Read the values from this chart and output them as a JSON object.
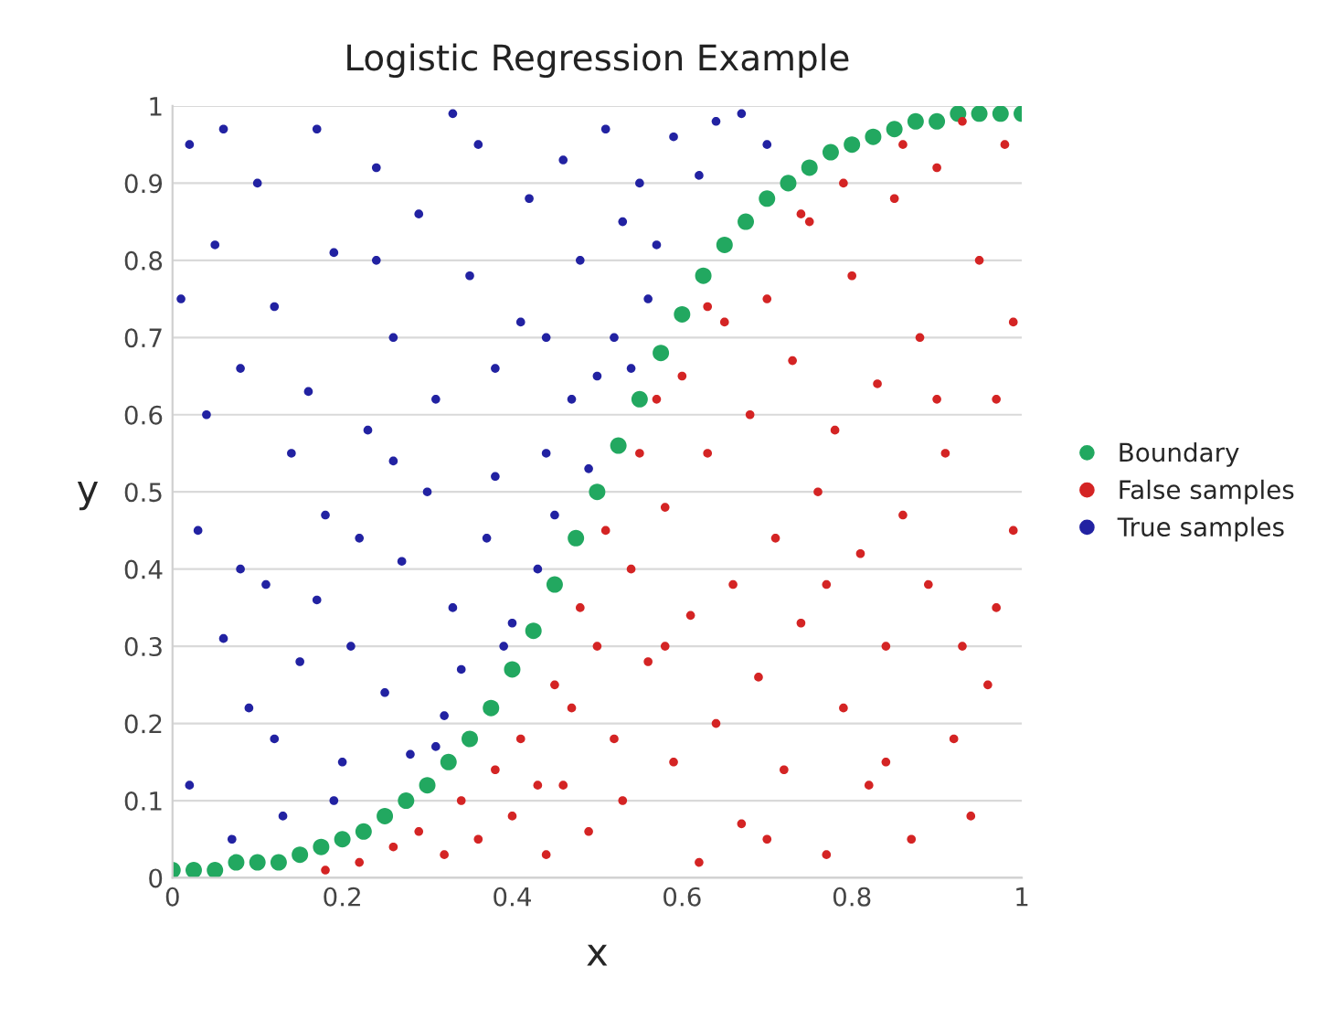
{
  "chart_data": {
    "type": "scatter",
    "title": "Logistic Regression Example",
    "xlabel": "x",
    "ylabel": "y",
    "xlim": [
      0,
      1
    ],
    "ylim": [
      0,
      1
    ],
    "xticks": [
      0,
      0.2,
      0.4,
      0.6,
      0.8,
      1
    ],
    "yticks": [
      0,
      0.1,
      0.2,
      0.3,
      0.4,
      0.5,
      0.6,
      0.7,
      0.8,
      0.9,
      1
    ],
    "grid": "y",
    "legend": "right",
    "marker": "circle",
    "series": [
      {
        "name": "Boundary",
        "color": "#22a860",
        "x": [
          0,
          0.025,
          0.05,
          0.075,
          0.1,
          0.125,
          0.15,
          0.175,
          0.2,
          0.225,
          0.25,
          0.275,
          0.3,
          0.325,
          0.35,
          0.375,
          0.4,
          0.425,
          0.45,
          0.475,
          0.5,
          0.525,
          0.55,
          0.575,
          0.6,
          0.625,
          0.65,
          0.675,
          0.7,
          0.725,
          0.75,
          0.775,
          0.8,
          0.825,
          0.85,
          0.875,
          0.9,
          0.925,
          0.95,
          0.975,
          1
        ],
        "values": [
          0.01,
          0.01,
          0.01,
          0.02,
          0.02,
          0.02,
          0.03,
          0.04,
          0.05,
          0.06,
          0.08,
          0.1,
          0.12,
          0.15,
          0.18,
          0.22,
          0.27,
          0.32,
          0.38,
          0.44,
          0.5,
          0.56,
          0.62,
          0.68,
          0.73,
          0.78,
          0.82,
          0.85,
          0.88,
          0.9,
          0.92,
          0.94,
          0.95,
          0.96,
          0.97,
          0.98,
          0.98,
          0.99,
          0.99,
          0.99,
          0.99
        ]
      },
      {
        "name": "False samples",
        "color": "#d42424",
        "x": [
          0.98,
          0.95,
          0.97,
          0.99,
          0.96,
          0.94,
          0.9,
          0.88,
          0.91,
          0.89,
          0.92,
          0.85,
          0.83,
          0.86,
          0.84,
          0.87,
          0.8,
          0.78,
          0.81,
          0.79,
          0.82,
          0.75,
          0.73,
          0.76,
          0.74,
          0.77,
          0.7,
          0.68,
          0.71,
          0.69,
          0.72,
          0.65,
          0.63,
          0.66,
          0.64,
          0.67,
          0.6,
          0.58,
          0.61,
          0.59,
          0.62,
          0.55,
          0.54,
          0.56,
          0.53,
          0.51,
          0.5,
          0.52,
          0.48,
          0.47,
          0.49,
          0.45,
          0.43,
          0.44,
          0.41,
          0.4,
          0.38,
          0.36,
          0.34,
          0.32,
          0.29,
          0.26,
          0.22,
          0.18,
          0.93,
          0.97,
          0.99,
          0.86,
          0.79,
          0.74,
          0.57,
          0.46,
          0.63,
          0.9,
          0.84,
          0.7,
          0.58,
          0.93,
          0.77
        ],
        "values": [
          0.95,
          0.8,
          0.62,
          0.45,
          0.25,
          0.08,
          0.92,
          0.7,
          0.55,
          0.38,
          0.18,
          0.88,
          0.64,
          0.47,
          0.3,
          0.05,
          0.78,
          0.58,
          0.42,
          0.22,
          0.12,
          0.85,
          0.67,
          0.5,
          0.33,
          0.03,
          0.75,
          0.6,
          0.44,
          0.26,
          0.14,
          0.72,
          0.55,
          0.38,
          0.2,
          0.07,
          0.65,
          0.48,
          0.34,
          0.15,
          0.02,
          0.55,
          0.4,
          0.28,
          0.1,
          0.45,
          0.3,
          0.18,
          0.35,
          0.22,
          0.06,
          0.25,
          0.12,
          0.03,
          0.18,
          0.08,
          0.14,
          0.05,
          0.1,
          0.03,
          0.06,
          0.04,
          0.02,
          0.01,
          0.98,
          0.35,
          0.72,
          0.95,
          0.9,
          0.86,
          0.62,
          0.12,
          0.74,
          0.62,
          0.15,
          0.05,
          0.3,
          0.3,
          0.38
        ]
      },
      {
        "name": "True samples",
        "color": "#2222a2",
        "x": [
          0.02,
          0.05,
          0.08,
          0.03,
          0.06,
          0.02,
          0.1,
          0.12,
          0.14,
          0.11,
          0.09,
          0.13,
          0.17,
          0.19,
          0.16,
          0.18,
          0.21,
          0.2,
          0.24,
          0.26,
          0.23,
          0.27,
          0.25,
          0.29,
          0.31,
          0.3,
          0.33,
          0.32,
          0.36,
          0.35,
          0.38,
          0.37,
          0.39,
          0.42,
          0.41,
          0.44,
          0.43,
          0.46,
          0.48,
          0.47,
          0.49,
          0.51,
          0.53,
          0.52,
          0.55,
          0.57,
          0.59,
          0.62,
          0.64,
          0.04,
          0.07,
          0.15,
          0.22,
          0.28,
          0.34,
          0.4,
          0.45,
          0.06,
          0.01,
          0.12,
          0.19,
          0.26,
          0.33,
          0.5,
          0.56,
          0.67,
          0.7,
          0.08,
          0.17,
          0.24,
          0.31,
          0.38,
          0.44,
          0.54
        ],
        "values": [
          0.95,
          0.82,
          0.66,
          0.45,
          0.31,
          0.12,
          0.9,
          0.74,
          0.55,
          0.38,
          0.22,
          0.08,
          0.97,
          0.81,
          0.63,
          0.47,
          0.3,
          0.15,
          0.92,
          0.7,
          0.58,
          0.41,
          0.24,
          0.86,
          0.62,
          0.5,
          0.35,
          0.21,
          0.95,
          0.78,
          0.66,
          0.44,
          0.3,
          0.88,
          0.72,
          0.55,
          0.4,
          0.93,
          0.8,
          0.62,
          0.53,
          0.97,
          0.85,
          0.7,
          0.9,
          0.82,
          0.96,
          0.91,
          0.98,
          0.6,
          0.05,
          0.28,
          0.44,
          0.16,
          0.27,
          0.33,
          0.47,
          0.97,
          0.75,
          0.18,
          0.1,
          0.54,
          0.99,
          0.65,
          0.75,
          0.99,
          0.95,
          0.4,
          0.36,
          0.8,
          0.17,
          0.52,
          0.7,
          0.66
        ]
      }
    ]
  }
}
